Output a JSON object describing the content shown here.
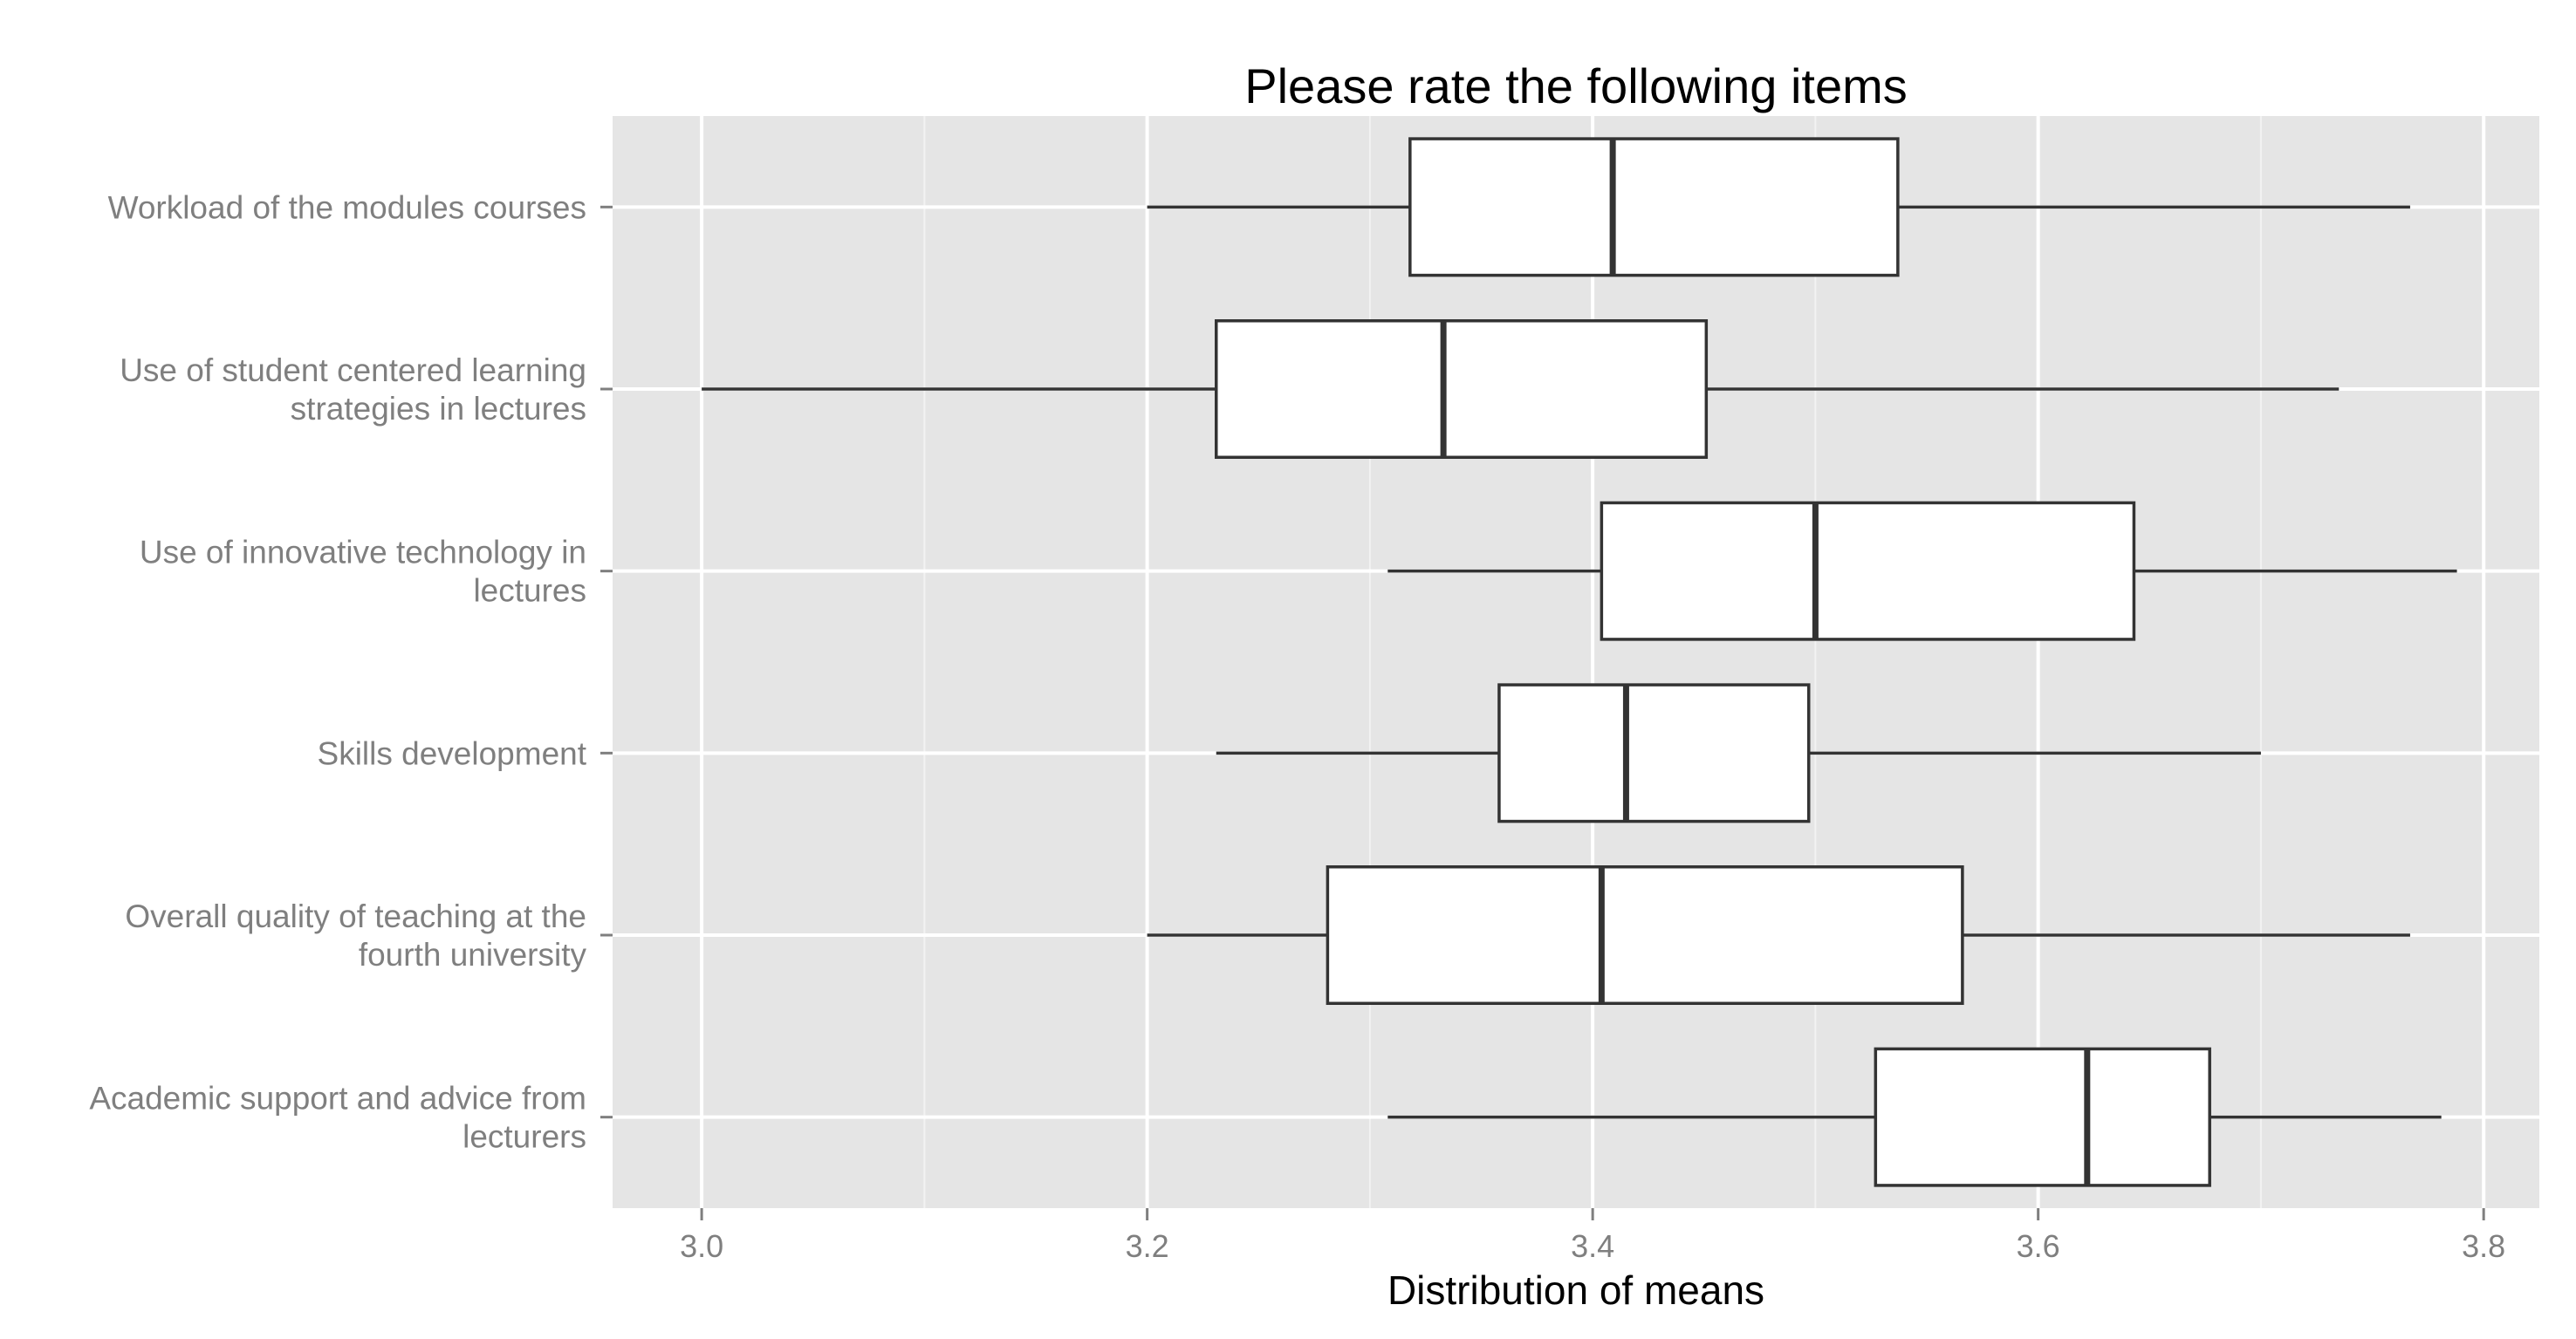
{
  "chart_data": {
    "type": "boxplot",
    "orientation": "horizontal",
    "title": "Please rate the following items",
    "xlabel": "Distribution of means",
    "ylabel": "",
    "xlim": [
      2.96,
      3.825
    ],
    "xticks": [
      3.0,
      3.2,
      3.4,
      3.6,
      3.8
    ],
    "xtick_labels": [
      "3.0",
      "3.2",
      "3.4",
      "3.6",
      "3.8"
    ],
    "grid": true,
    "legend": "none",
    "colors": {
      "panel_background": "#e5e5e5",
      "gridline": "#ffffff",
      "box_fill": "#ffffff",
      "box_stroke": "#333333",
      "tick_label": "#7f7f7f"
    },
    "categories": [
      {
        "label_lines": [
          "Workload of the modules courses"
        ],
        "whisker_low": 3.2,
        "q1": 3.318,
        "median": 3.409,
        "q3": 3.537,
        "whisker_high": 3.767
      },
      {
        "label_lines": [
          "Use of student centered learning",
          "strategies in lectures"
        ],
        "whisker_low": 3.0,
        "q1": 3.231,
        "median": 3.333,
        "q3": 3.451,
        "whisker_high": 3.735
      },
      {
        "label_lines": [
          "Use of innovative technology in",
          "lectures"
        ],
        "whisker_low": 3.308,
        "q1": 3.404,
        "median": 3.5,
        "q3": 3.643,
        "whisker_high": 3.788
      },
      {
        "label_lines": [
          "Skills development"
        ],
        "whisker_low": 3.231,
        "q1": 3.358,
        "median": 3.415,
        "q3": 3.497,
        "whisker_high": 3.7
      },
      {
        "label_lines": [
          "Overall quality of teaching at the",
          "fourth university"
        ],
        "whisker_low": 3.2,
        "q1": 3.281,
        "median": 3.404,
        "q3": 3.566,
        "whisker_high": 3.767
      },
      {
        "label_lines": [
          "Academic support and advice from",
          "lecturers"
        ],
        "whisker_low": 3.308,
        "q1": 3.527,
        "median": 3.622,
        "q3": 3.677,
        "whisker_high": 3.781
      }
    ]
  }
}
